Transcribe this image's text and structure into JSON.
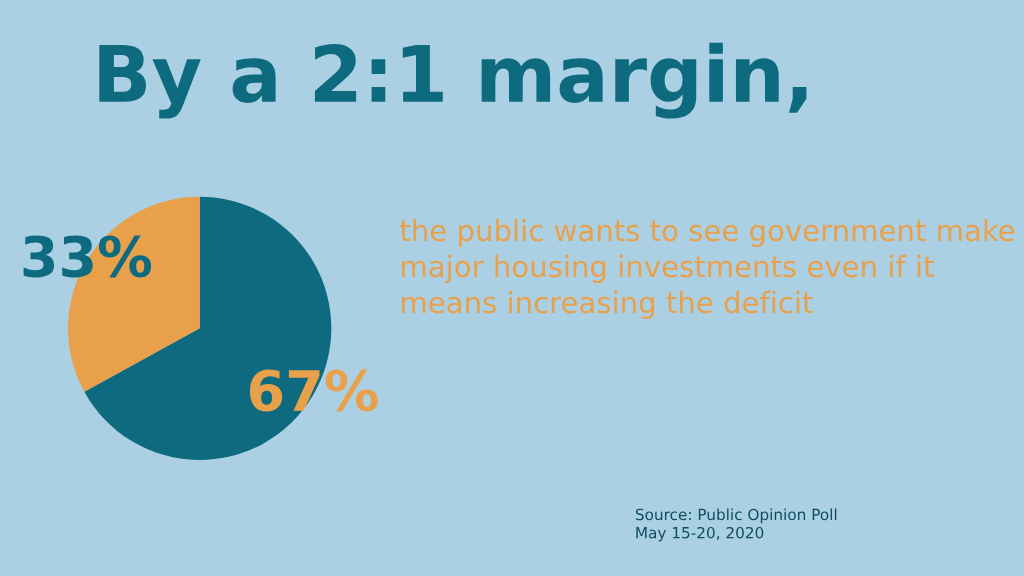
{
  "chart_data": {
    "type": "pie",
    "title": "By a 2:1 margin,",
    "subtitle": "the public wants to see government make major housing investments even if it means increasing the deficit",
    "categories": [
      null,
      null
    ],
    "values": [
      67,
      33
    ],
    "colors": [
      "#0e6a7e",
      "#e9a04b"
    ],
    "value_labels": [
      "67%",
      "33%"
    ],
    "annotations": [
      "Source: Public Opinion Poll\nMay 15-20, 2020"
    ]
  }
}
